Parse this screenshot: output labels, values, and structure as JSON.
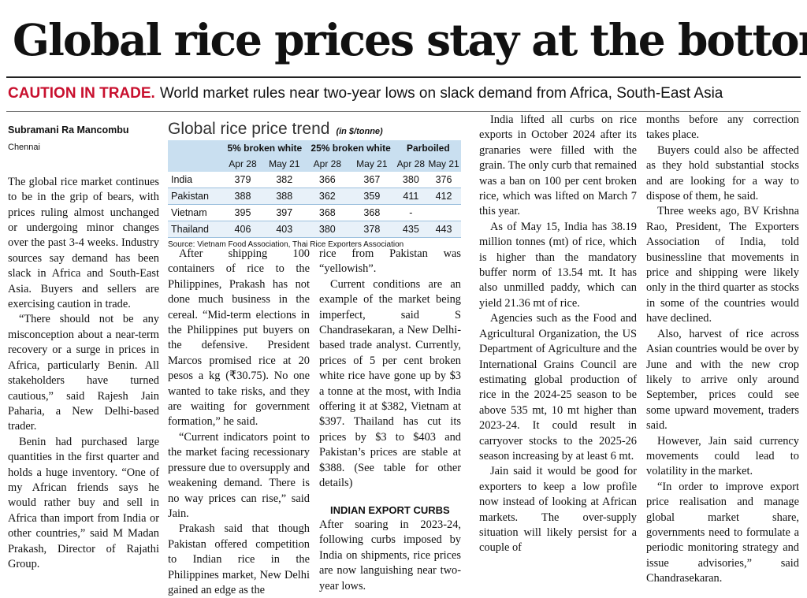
{
  "headline": "Global rice prices stay at the bottom",
  "subhead": {
    "kicker": "CAUTION IN TRADE.",
    "text": "World market rules near two-year lows on slack demand from Africa, South-East Asia"
  },
  "byline": "Subramani Ra Mancombu",
  "dateline": "Chennai",
  "table": {
    "title": "Global rice price trend",
    "unit": "(in $/tonne)",
    "groups": [
      "5% broken white",
      "25% broken white",
      "Parboiled"
    ],
    "dates": [
      "Apr 28",
      "May 21",
      "Apr 28",
      "May 21",
      "Apr 28",
      "May 21"
    ],
    "rows": [
      {
        "country": "India",
        "values": [
          "379",
          "382",
          "366",
          "367",
          "380",
          "376"
        ]
      },
      {
        "country": "Pakistan",
        "values": [
          "388",
          "388",
          "362",
          "359",
          "411",
          "412"
        ]
      },
      {
        "country": "Vietnam",
        "values": [
          "395",
          "397",
          "368",
          "368",
          "-",
          ""
        ]
      },
      {
        "country": "Thailand",
        "values": [
          "406",
          "403",
          "380",
          "378",
          "435",
          "443"
        ]
      }
    ],
    "source": "Source: Vietnam Food Association, Thai Rice Exporters Association"
  },
  "body": {
    "col1": [
      "The global rice market continues to be in the grip of bears, with prices ruling almost unchanged or undergoing minor changes over the past 3-4 weeks. Industry sources say demand has been slack in Africa and South-East Asia. Buyers and sellers are exercising caution in trade.",
      "“There should not be any misconception about a near-term recovery or a surge in prices in Africa, particularly Benin. All stakeholders have turned cautious,” said Rajesh Jain Paharia, a New Delhi-based trader.",
      "Benin had purchased large quantities in the first quarter and holds a huge inventory. “One of my African friends says he would rather buy and sell in Africa than import from India or other countries,” said M Madan Prakash, Director of Rajathi Group."
    ],
    "col2": [
      "After shipping 100 containers of rice to the Philippines, Prakash has not done much business in the cereal. “Mid-term elections in the Philippines put buyers on the defensive. President Marcos promised rice at 20 pesos a kg (₹30.75). No one wanted to take risks, and they are waiting for government formation,” he said.",
      "“Current indicators point to the market facing recessionary pressure due to oversupply and weakening demand. There is no way prices can rise,” said Jain.",
      "Prakash said that though Pakistan offered competition to Indian rice in the Philippines market, New Delhi gained an edge as the"
    ],
    "col3a": [
      "rice from Pakistan was “yellowish”.",
      "Current conditions are an example of the market being imperfect, said S Chandrasekaran, a New Delhi-based trade analyst. Currently, prices of 5 per cent broken white rice have gone up by $3 a tonne at the most, with India offering it at $382, Vietnam at $397. Thailand has cut its prices by $3 to $403 and Pakistan’s prices are stable at $388. (See table for other details)"
    ],
    "col3_subhead": "INDIAN EXPORT CURBS",
    "col3b": [
      "After soaring in 2023-24, following curbs imposed by India on shipments, rice prices are now languishing near two-year lows."
    ],
    "col4": [
      "India lifted all curbs on rice exports in October 2024 after its granaries were filled with the grain. The only curb that remained was a ban on 100 per cent broken rice, which was lifted on March 7 this year.",
      "As of May 15, India has 38.19 million tonnes (mt) of rice, which is higher than the mandatory buffer norm of 13.54 mt. It has also unmilled paddy, which can yield 21.36 mt of rice.",
      "Agencies such as the Food and Agricultural Organization, the US Department of Agriculture and the International Grains Council are estimating global production of rice in the 2024-25 season to be above 535 mt, 10 mt higher than 2023-24. It could result in carryover stocks to the 2025-26 season increasing by at least 6 mt.",
      "Jain said it would be good for exporters to keep a low profile now instead of looking at African markets. The over-supply situation will likely persist for a couple of"
    ],
    "col5": [
      "months before any correction takes place.",
      "Buyers could also be affected as they hold substantial stocks and are looking for a way to dispose of them, he said.",
      "Three weeks ago, BV Krishna Rao, President, The Exporters Association of India, told businessline that movements in price and shipping were likely only in the third quarter as stocks in some of the countries would have declined.",
      "Also, harvest of rice across Asian countries would be over by June and with the new crop likely to arrive only around September, prices could see some upward movement, traders said.",
      "However, Jain said currency movements could lead to volatility in the market.",
      "“In order to improve export price realisation and manage global market share, governments need to formulate a periodic monitoring strategy and issue advisories,” said Chandrasekaran."
    ]
  },
  "colors": {
    "kicker": "#c8102e",
    "table_header": "#c9dff0",
    "table_alt_row": "#e8f1f9"
  }
}
